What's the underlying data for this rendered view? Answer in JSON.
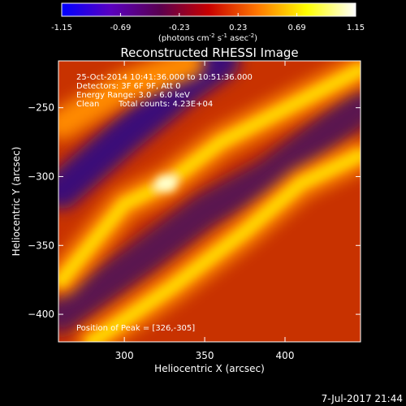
{
  "colorbar": {
    "ticks": [
      "-1.15",
      "-0.69",
      "-0.23",
      "0.23",
      "0.69",
      "1.15"
    ],
    "tick_values": [
      -1.15,
      -0.69,
      -0.23,
      0.23,
      0.69,
      1.15
    ],
    "range": [
      -1.15,
      1.15
    ],
    "unit_prefix": "(photons cm",
    "unit_exp1": "-2",
    "unit_mid": " s",
    "unit_exp2": "-1",
    "unit_mid2": " asec",
    "unit_exp3": "-2",
    "unit_suffix": ")",
    "colors": [
      "#0000ff",
      "#5a00c0",
      "#5a0050",
      "#c80000",
      "#ff7800",
      "#ffff00",
      "#ffffff"
    ]
  },
  "chart_data": {
    "type": "heatmap",
    "title": "Reconstructed RHESSI Image",
    "xlabel": "Heliocentric X (arcsec)",
    "ylabel": "Heliocentric Y (arcsec)",
    "xlim": [
      259,
      447
    ],
    "ylim": [
      -420,
      -216
    ],
    "xticks": [
      300,
      350,
      400
    ],
    "yticks": [
      -250,
      -300,
      -350,
      -400
    ],
    "info": {
      "time_range": "25-Oct-2014 10:41:36.000 to 10:51:36.000",
      "detectors": "Detectors: 3F 6F 9F, Att 0",
      "energy": "Energy Range: 3.0 - 6.0 keV",
      "clean": "Clean",
      "counts": "Total counts: 4.23E+04"
    },
    "peak_label": "Position of Peak = [326,-305]",
    "peak": [
      326,
      -305
    ],
    "bright_ridges": [
      {
        "points": [
          [
            261,
            -375
          ],
          [
            300,
            -320
          ],
          [
            326,
            -305
          ],
          [
            360,
            -275
          ],
          [
            446,
            -223
          ]
        ],
        "intensity": 0.95
      },
      {
        "points": [
          [
            280,
            -420
          ],
          [
            330,
            -380
          ],
          [
            375,
            -340
          ],
          [
            410,
            -305
          ],
          [
            446,
            -285
          ]
        ],
        "intensity": 0.85
      },
      {
        "points": [
          [
            261,
            -262
          ],
          [
            300,
            -235
          ],
          [
            340,
            -218
          ]
        ],
        "intensity": 0.55
      }
    ],
    "dark_bands": [
      {
        "points": [
          [
            261,
            -310
          ],
          [
            300,
            -270
          ],
          [
            340,
            -232
          ],
          [
            360,
            -216
          ]
        ],
        "intensity": -0.55
      },
      {
        "points": [
          [
            261,
            -400
          ],
          [
            310,
            -360
          ],
          [
            350,
            -325
          ],
          [
            390,
            -300
          ],
          [
            446,
            -250
          ]
        ],
        "intensity": -0.35
      }
    ]
  },
  "footer": {
    "date": "7-Jul-2017 21:44"
  }
}
